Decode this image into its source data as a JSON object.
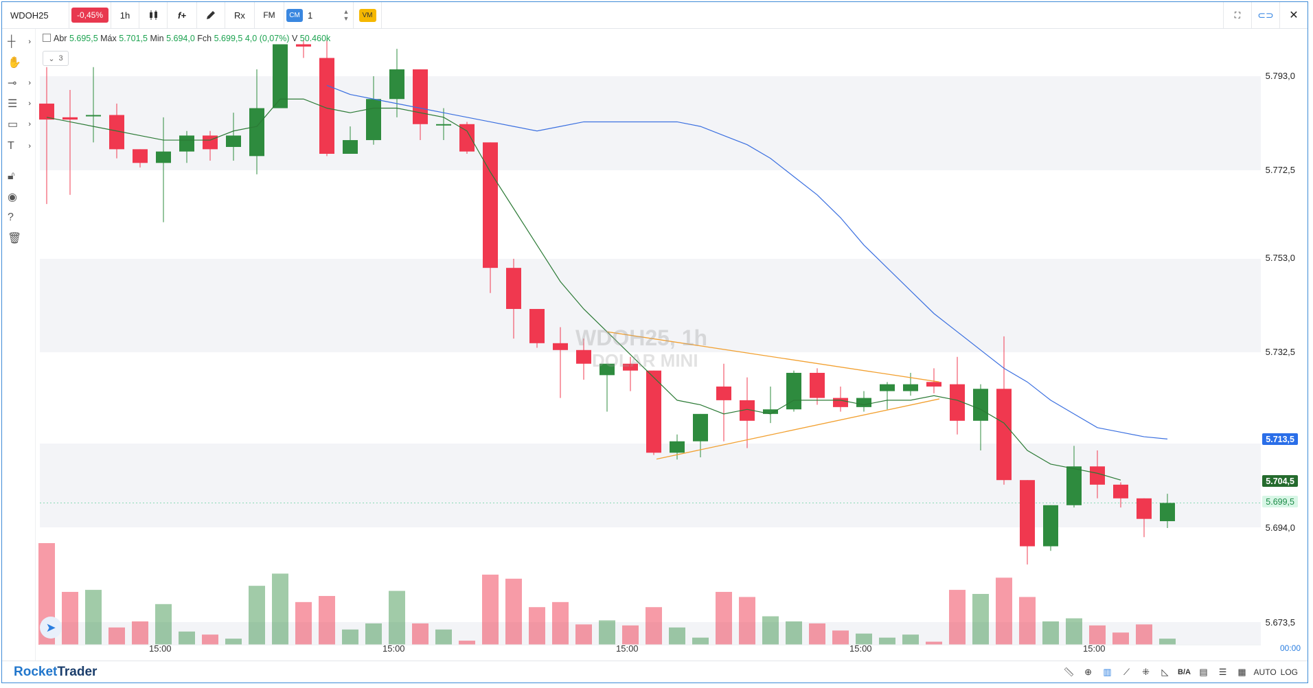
{
  "toolbar": {
    "symbol": "WDOH25",
    "change": "-0,45%",
    "timeframe": "1h",
    "func_label": "f+",
    "rx_label": "Rx",
    "fm_label": "FM",
    "cm_label": "CM",
    "qty_value": "1",
    "vm_label": "VM"
  },
  "legend": {
    "abr_label": "Abr",
    "abr": "5.695,5",
    "max_label": "Máx",
    "max": "5.701,5",
    "min_label": "Min",
    "min": "5.694,0",
    "fch_label": "Fch",
    "fch": "5.699,5",
    "var": "4,0",
    "var_pct": "(0,07%)",
    "vol_label": "V",
    "vol": "50.460k",
    "collapsed_count": "3"
  },
  "watermark": {
    "line1": "WDOH25, 1h",
    "line2": "DOLAR MINI"
  },
  "price_axis": {
    "labels": [
      "5.793,0",
      "5.772,5",
      "5.753,0",
      "5.732,5",
      "5.694,0",
      "5.673,5"
    ],
    "tag_ma_long": "5.713,5",
    "tag_ma_short": "5.704,5",
    "tag_last": "5.699,5",
    "clock": "00:00"
  },
  "time_axis": {
    "labels": [
      "15:00",
      "15:00",
      "15:00",
      "15:00",
      "15:00"
    ]
  },
  "status_bar": {
    "brand_first": "Rocket",
    "brand_second": "Trader",
    "ba_label": "B/A",
    "auto_label": "AUTO",
    "log_label": "LOG"
  },
  "colors": {
    "up": "#2e8b3e",
    "down": "#f0384f",
    "ma_short": "#2b7a35",
    "ma_long": "#3a6fe0",
    "trendline": "#f2a030",
    "accent": "#2a7ee0"
  },
  "chart_data": {
    "type": "candlestick",
    "timeframe": "1h",
    "y_range": [
      5664,
      5798
    ],
    "y_ticks": [
      5793.0,
      5772.5,
      5753.0,
      5732.5,
      5713.5,
      5694.0,
      5673.5
    ],
    "candles": [
      [
        5787.0,
        5795.0,
        5765.0,
        5783.5
      ],
      [
        5784.0,
        5790.0,
        5767.0,
        5783.5
      ],
      [
        5784.5,
        5795.0,
        5778.5,
        5784.5
      ],
      [
        5784.5,
        5787.0,
        5775.0,
        5777.0
      ],
      [
        5777.0,
        5777.0,
        5773.0,
        5774.0
      ],
      [
        5774.0,
        5784.0,
        5761.0,
        5776.5
      ],
      [
        5776.5,
        5781.0,
        5774.0,
        5780.0
      ],
      [
        5780.0,
        5781.0,
        5774.5,
        5777.0
      ],
      [
        5777.5,
        5785.0,
        5774.5,
        5780.0
      ],
      [
        5775.5,
        5794.5,
        5771.5,
        5786.0
      ],
      [
        5786.0,
        5800.0,
        5786.0,
        5800.0
      ],
      [
        5800.0,
        5801.0,
        5797.0,
        5799.5
      ],
      [
        5797.0,
        5801.0,
        5775.5,
        5776.0
      ],
      [
        5776.0,
        5782.0,
        5776.0,
        5779.0
      ],
      [
        5779.0,
        5793.0,
        5778.0,
        5788.0
      ],
      [
        5788.0,
        5799.0,
        5784.0,
        5794.5
      ],
      [
        5794.5,
        5794.5,
        5779.0,
        5782.5
      ],
      [
        5782.5,
        5786.0,
        5779.0,
        5782.5
      ],
      [
        5782.5,
        5783.0,
        5776.0,
        5776.5
      ],
      [
        5778.5,
        5778.5,
        5745.5,
        5751.0
      ],
      [
        5751.0,
        5753.0,
        5735.5,
        5742.0
      ],
      [
        5742.0,
        5742.0,
        5733.5,
        5734.5
      ],
      [
        5734.5,
        5738.0,
        5722.5,
        5733.0
      ],
      [
        5733.0,
        5735.5,
        5726.5,
        5730.0
      ],
      [
        5727.5,
        5730.0,
        5719.5,
        5730.0
      ],
      [
        5730.0,
        5731.5,
        5724.0,
        5728.5
      ],
      [
        5728.5,
        5728.5,
        5710.0,
        5710.5
      ],
      [
        5710.5,
        5714.5,
        5709.0,
        5713.0
      ],
      [
        5713.0,
        5719.0,
        5709.5,
        5719.0
      ],
      [
        5725.0,
        5730.0,
        5713.0,
        5722.0
      ],
      [
        5722.0,
        5727.0,
        5711.5,
        5717.5
      ],
      [
        5719.0,
        5725.0,
        5717.0,
        5720.0
      ],
      [
        5720.0,
        5728.5,
        5719.5,
        5728.0
      ],
      [
        5728.0,
        5729.0,
        5721.0,
        5722.5
      ],
      [
        5722.5,
        5725.0,
        5719.5,
        5720.5
      ],
      [
        5720.5,
        5724.0,
        5719.5,
        5722.5
      ],
      [
        5724.0,
        5726.0,
        5720.0,
        5725.5
      ],
      [
        5724.0,
        5728.0,
        5723.0,
        5725.5
      ],
      [
        5726.0,
        5729.0,
        5723.5,
        5725.0
      ],
      [
        5725.5,
        5731.5,
        5714.5,
        5717.5
      ],
      [
        5717.5,
        5725.5,
        5711.0,
        5724.5
      ],
      [
        5724.5,
        5736.0,
        5703.5,
        5704.5
      ],
      [
        5704.5,
        5704.5,
        5686.0,
        5690.0
      ],
      [
        5690.0,
        5699.0,
        5689.0,
        5699.0
      ],
      [
        5699.0,
        5712.0,
        5698.5,
        5707.5
      ],
      [
        5707.5,
        5711.0,
        5700.5,
        5703.5
      ],
      [
        5703.5,
        5704.0,
        5698.5,
        5700.5
      ],
      [
        5700.5,
        5700.5,
        5692.0,
        5696.0
      ],
      [
        5695.5,
        5701.5,
        5694.0,
        5699.5
      ]
    ],
    "volume_relative": [
      1.0,
      0.52,
      0.54,
      0.17,
      0.23,
      0.4,
      0.13,
      0.1,
      0.06,
      0.58,
      0.7,
      0.42,
      0.48,
      0.15,
      0.21,
      0.53,
      0.21,
      0.15,
      0.04,
      0.69,
      0.65,
      0.37,
      0.42,
      0.2,
      0.24,
      0.19,
      0.37,
      0.17,
      0.07,
      0.52,
      0.47,
      0.28,
      0.23,
      0.21,
      0.14,
      0.11,
      0.07,
      0.1,
      0.03,
      0.54,
      0.5,
      0.66,
      0.47,
      0.23,
      0.26,
      0.19,
      0.12,
      0.2,
      0.06
    ],
    "ma_short": [
      5784,
      5783,
      5782,
      5781,
      5780,
      5779,
      5779,
      5779,
      5781,
      5782,
      5788,
      5788,
      5786,
      5785,
      5786,
      5786,
      5785,
      5784,
      5781,
      5772,
      5764,
      5756,
      5748,
      5742,
      5737,
      5732,
      5727,
      5722,
      5721,
      5719,
      5720,
      5719,
      5722,
      5722,
      5722,
      5721,
      5722,
      5722,
      5723,
      5722,
      5720,
      5717,
      5711,
      5708,
      5707,
      5706,
      5704.5
    ],
    "ma_short_start": 0,
    "ma_long": [
      5791,
      5789,
      5788,
      5787,
      5786,
      5785,
      5784,
      5783,
      5782,
      5781,
      5782,
      5783,
      5783,
      5783,
      5783,
      5783,
      5782,
      5780,
      5778,
      5775,
      5771,
      5767,
      5762,
      5756,
      5751,
      5746,
      5741,
      5737,
      5733,
      5729,
      5726,
      5722,
      5719,
      5716,
      5715,
      5714,
      5713.5
    ],
    "ma_long_start": 0,
    "ma_long_offset": 12
  }
}
